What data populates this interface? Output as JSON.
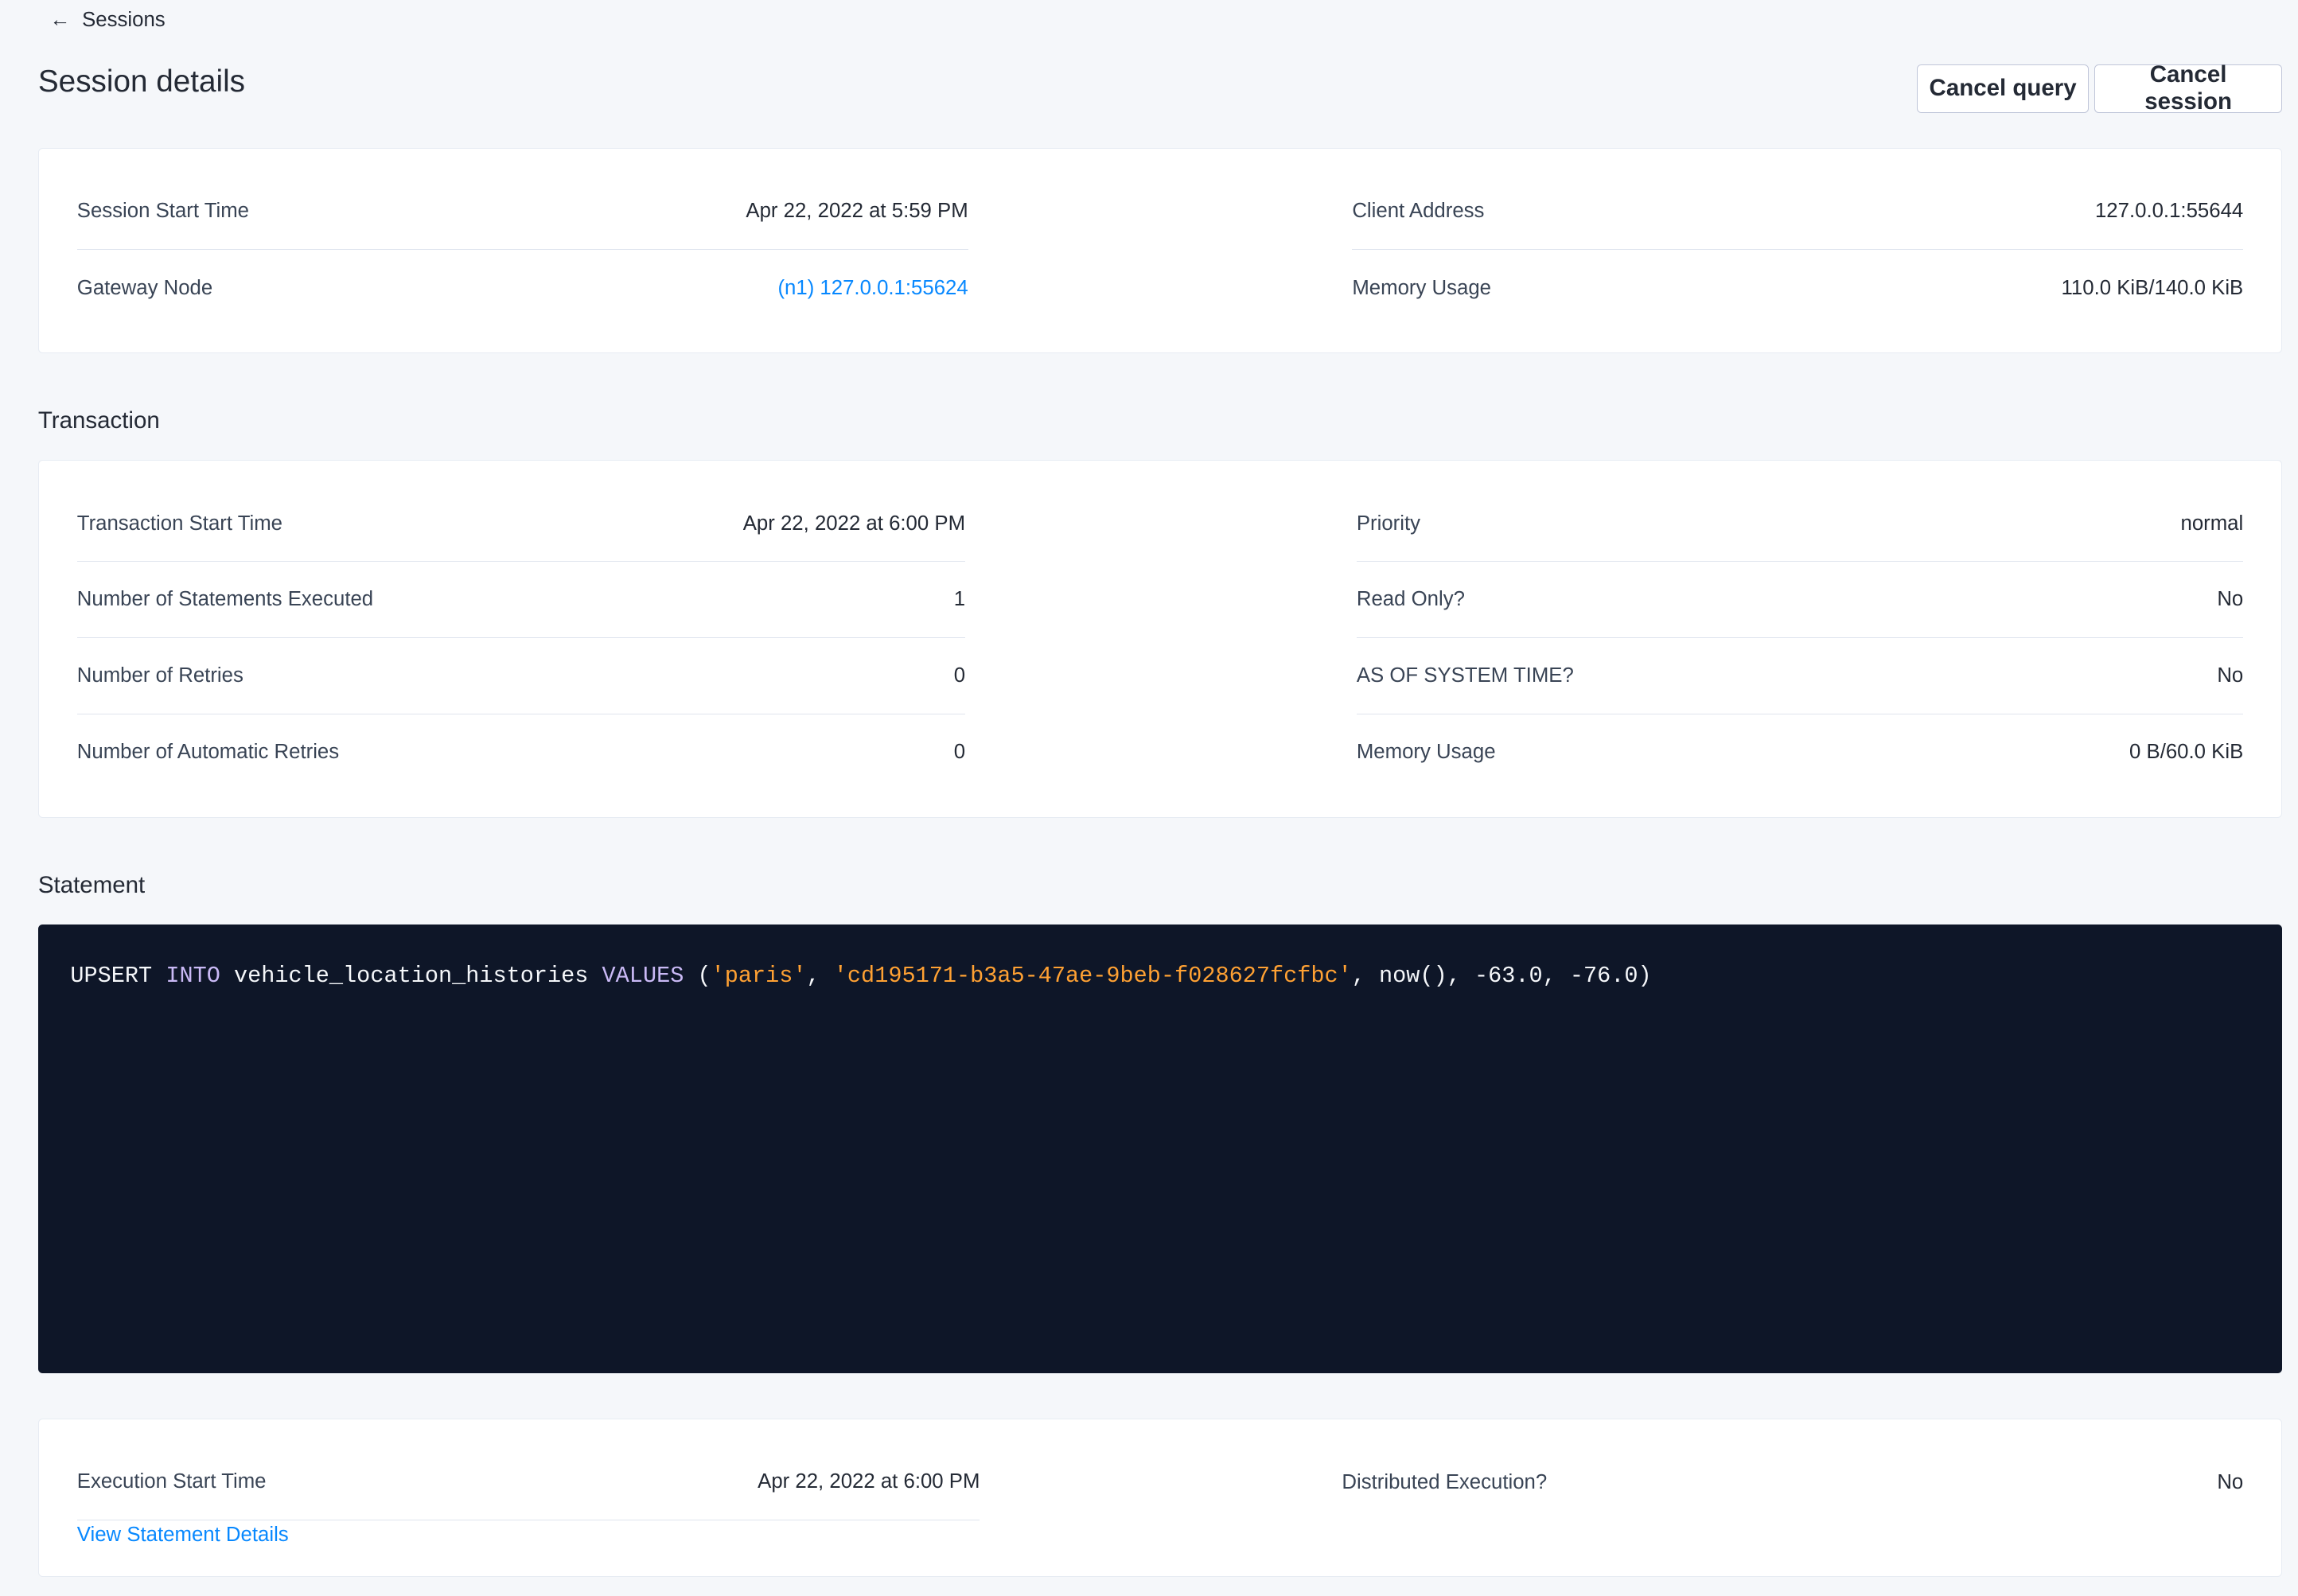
{
  "breadcrumb": {
    "label": "Sessions",
    "icon": "arrow-left-icon"
  },
  "page_title": "Session details",
  "actions": {
    "cancel_query": "Cancel query",
    "cancel_session": "Cancel session"
  },
  "session": {
    "left": [
      {
        "label": "Session Start Time",
        "value": "Apr 22, 2022 at 5:59 PM"
      },
      {
        "label": "Gateway Node",
        "value": "(n1) 127.0.0.1:55624"
      }
    ],
    "right": [
      {
        "label": "Client Address",
        "value": "127.0.0.1:55644"
      },
      {
        "label": "Memory Usage",
        "value": "110.0 KiB/140.0 KiB"
      }
    ]
  },
  "transaction": {
    "heading": "Transaction",
    "left": [
      {
        "label": "Transaction Start Time",
        "value": "Apr 22, 2022 at 6:00 PM"
      },
      {
        "label": "Number of Statements Executed",
        "value": "1"
      },
      {
        "label": "Number of Retries",
        "value": "0"
      },
      {
        "label": "Number of Automatic Retries",
        "value": "0"
      }
    ],
    "right": [
      {
        "label": "Priority",
        "value": "normal"
      },
      {
        "label": "Read Only?",
        "value": "No"
      },
      {
        "label": "AS OF SYSTEM TIME?",
        "value": "No"
      },
      {
        "label": "Memory Usage",
        "value": "0 B/60.0 KiB"
      }
    ]
  },
  "statement": {
    "heading": "Statement",
    "tokens": [
      "UPSERT",
      " ",
      "INTO",
      " vehicle_location_histories ",
      "VALUES",
      " (",
      "'paris'",
      ", ",
      "'cd195171-b3a5-47ae-9beb-f028627fcfbc'",
      ", now(), -63.0, -76.0)"
    ],
    "colors": {
      "keyword": "#c9b9f5",
      "string": "#ffa133",
      "text": "#f5f7fa",
      "background": "#0e1628"
    }
  },
  "execution": {
    "left": [
      {
        "label": "Execution Start Time",
        "value": "Apr 22, 2022 at 6:00 PM"
      }
    ],
    "right": [
      {
        "label": "Distributed Execution?",
        "value": "No"
      }
    ],
    "view_details": "View Statement Details"
  },
  "colors": {
    "link": "#0788ff",
    "background": "#f5f7fa"
  }
}
